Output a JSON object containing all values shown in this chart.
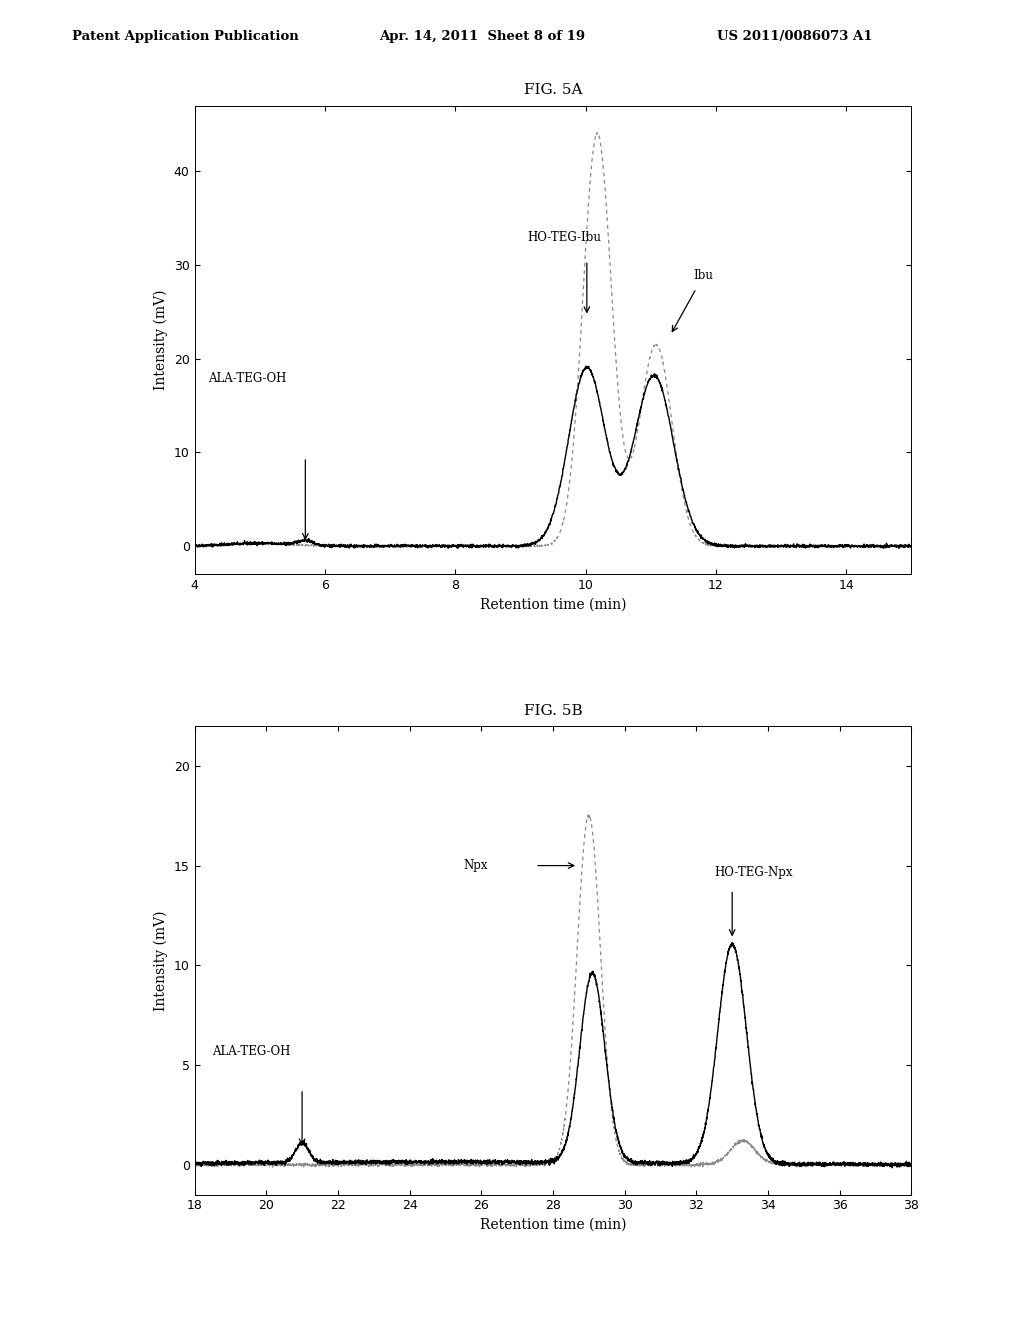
{
  "header_left": "Patent Application Publication",
  "header_mid": "Apr. 14, 2011  Sheet 8 of 19",
  "header_right": "US 2011/0086073 A1",
  "fig5a_title": "FIG. 5A",
  "fig5b_title": "FIG. 5B",
  "fig5a_xlabel": "Retention time (min)",
  "fig5a_ylabel": "Intensity (mV)",
  "fig5b_xlabel": "Retention time (min)",
  "fig5b_ylabel": "Intensity (mV)",
  "fig5a_xlim": [
    4,
    15
  ],
  "fig5a_ylim": [
    -3,
    47
  ],
  "fig5a_xticks": [
    4,
    6,
    8,
    10,
    12,
    14
  ],
  "fig5a_yticks": [
    0,
    10,
    20,
    30,
    40
  ],
  "fig5b_xlim": [
    18,
    38
  ],
  "fig5b_ylim": [
    -1.5,
    22
  ],
  "fig5b_xticks": [
    18,
    20,
    22,
    24,
    26,
    28,
    30,
    32,
    34,
    36,
    38
  ],
  "fig5b_yticks": [
    0,
    5,
    10,
    15,
    20
  ],
  "background_color": "#ffffff",
  "line_color_solid": "#000000",
  "line_color_dashed": "#888888"
}
